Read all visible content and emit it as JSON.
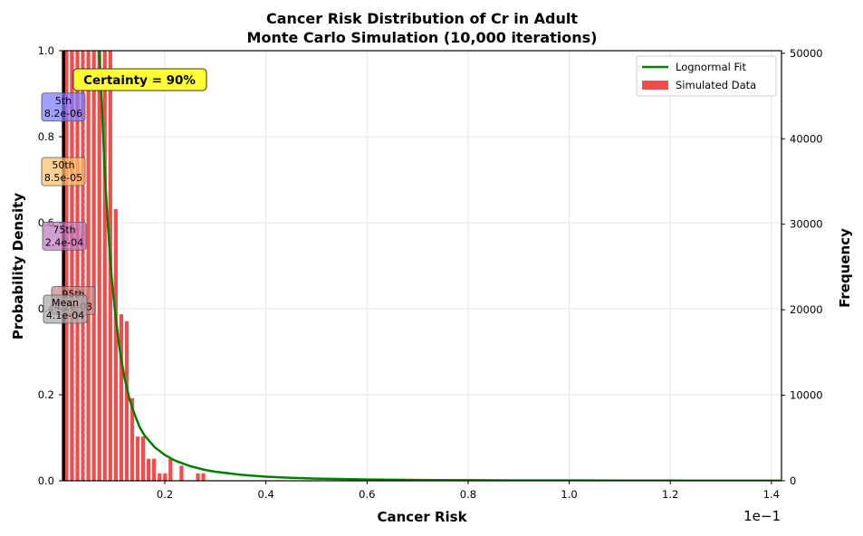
{
  "chart_data": {
    "type": "bar",
    "title": "Cancer Risk Distribution of Cr in Adult",
    "subtitle": "Monte Carlo Simulation (10,000 iterations)",
    "xlabel": "Cancer Risk",
    "ylabel": "Probability Density",
    "y2label": "Frequency",
    "x_offset_label": "1e−1",
    "xlim": [
      -0.0025,
      1.42
    ],
    "ylim": [
      0,
      1.0
    ],
    "y2lim": [
      0,
      50300
    ],
    "x_ticks": [
      0.2,
      0.4,
      0.6,
      0.8,
      1.0,
      1.2,
      1.4
    ],
    "x_tick_labels": [
      "0.2",
      "0.4",
      "0.6",
      "0.8",
      "1.0",
      "1.2",
      "1.4"
    ],
    "y_ticks": [
      0.0,
      0.2,
      0.4,
      0.6,
      0.8,
      1.0
    ],
    "y_tick_labels": [
      "0.0",
      "0.2",
      "0.4",
      "0.6",
      "0.8",
      "1.0"
    ],
    "y2_ticks": [
      0,
      10000,
      20000,
      30000,
      40000,
      50000
    ],
    "y2_tick_labels": [
      "0",
      "10000",
      "20000",
      "30000",
      "40000",
      "50000"
    ],
    "grid": true,
    "legend_position": "top-right",
    "series": [
      {
        "name": "Lognormal Fit",
        "type": "line",
        "color": "#008000"
      },
      {
        "name": "Simulated Data",
        "type": "bar",
        "color": "#f44b4b"
      }
    ],
    "histogram": {
      "bin_width": 0.01083,
      "bins": [
        {
          "x": 0.0,
          "f": 51000
        },
        {
          "x": 0.0108,
          "f": 51000
        },
        {
          "x": 0.0217,
          "f": 51000
        },
        {
          "x": 0.0325,
          "f": 51000
        },
        {
          "x": 0.0433,
          "f": 51000
        },
        {
          "x": 0.0542,
          "f": 51000
        },
        {
          "x": 0.065,
          "f": 51000
        },
        {
          "x": 0.0758,
          "f": 51000
        },
        {
          "x": 0.0867,
          "f": 51000
        },
        {
          "x": 0.0975,
          "f": 31800
        },
        {
          "x": 0.1083,
          "f": 19500
        },
        {
          "x": 0.1192,
          "f": 18700
        },
        {
          "x": 0.13,
          "f": 9700
        },
        {
          "x": 0.1408,
          "f": 5200
        },
        {
          "x": 0.1517,
          "f": 5200
        },
        {
          "x": 0.1625,
          "f": 2600
        },
        {
          "x": 0.1733,
          "f": 2600
        },
        {
          "x": 0.1842,
          "f": 900
        },
        {
          "x": 0.195,
          "f": 900
        },
        {
          "x": 0.2058,
          "f": 2600
        },
        {
          "x": 0.2167,
          "f": 0
        },
        {
          "x": 0.2275,
          "f": 1800
        },
        {
          "x": 0.2383,
          "f": 0
        },
        {
          "x": 0.2492,
          "f": 0
        },
        {
          "x": 0.26,
          "f": 900
        },
        {
          "x": 0.2708,
          "f": 900
        }
      ]
    },
    "lognormal_fit": {
      "x": [
        0.07,
        0.072,
        0.075,
        0.078,
        0.08,
        0.083,
        0.086,
        0.09,
        0.095,
        0.1,
        0.11,
        0.12,
        0.13,
        0.14,
        0.15,
        0.16,
        0.18,
        0.2,
        0.22,
        0.25,
        0.28,
        0.3,
        0.35,
        0.4,
        0.45,
        0.5,
        0.6,
        0.7,
        0.8,
        0.9,
        1.0,
        1.1,
        1.2,
        1.3,
        1.42
      ],
      "y": [
        1.0,
        0.95,
        0.88,
        0.8,
        0.75,
        0.68,
        0.62,
        0.55,
        0.47,
        0.41,
        0.31,
        0.24,
        0.19,
        0.155,
        0.125,
        0.105,
        0.078,
        0.06,
        0.047,
        0.034,
        0.025,
        0.021,
        0.014,
        0.0095,
        0.0068,
        0.005,
        0.003,
        0.0019,
        0.0013,
        0.0009,
        0.0007,
        0.0005,
        0.0004,
        0.0003,
        0.0002
      ]
    },
    "vertical_lines": [
      {
        "x": 0.0,
        "color": "#000000",
        "style": "solid-thick"
      },
      {
        "x": 0.022,
        "color": "#dddddd",
        "style": "dashed"
      },
      {
        "x": 0.0415,
        "color": "#dddddd",
        "style": "dashed"
      }
    ],
    "percentile_labels": [
      {
        "label": "5th",
        "value": "8.2e-06",
        "color": "#7b7bff",
        "y": 0.87
      },
      {
        "label": "50th",
        "value": "8.5e-05",
        "color": "#ffbf66",
        "y": 0.72
      },
      {
        "label": "75th",
        "value": "2.4e-04",
        "color": "#c07ac0",
        "y": 0.57
      },
      {
        "label": "95th",
        "value": "4.2e-03",
        "color": "#cc8888",
        "y": 0.42
      },
      {
        "label": "Mean",
        "value": "4.1e-04",
        "color": "#aaaaaa",
        "y": 0.4
      }
    ],
    "annotation": {
      "text": "Certainty = 90%",
      "color": "#ffff33"
    }
  }
}
